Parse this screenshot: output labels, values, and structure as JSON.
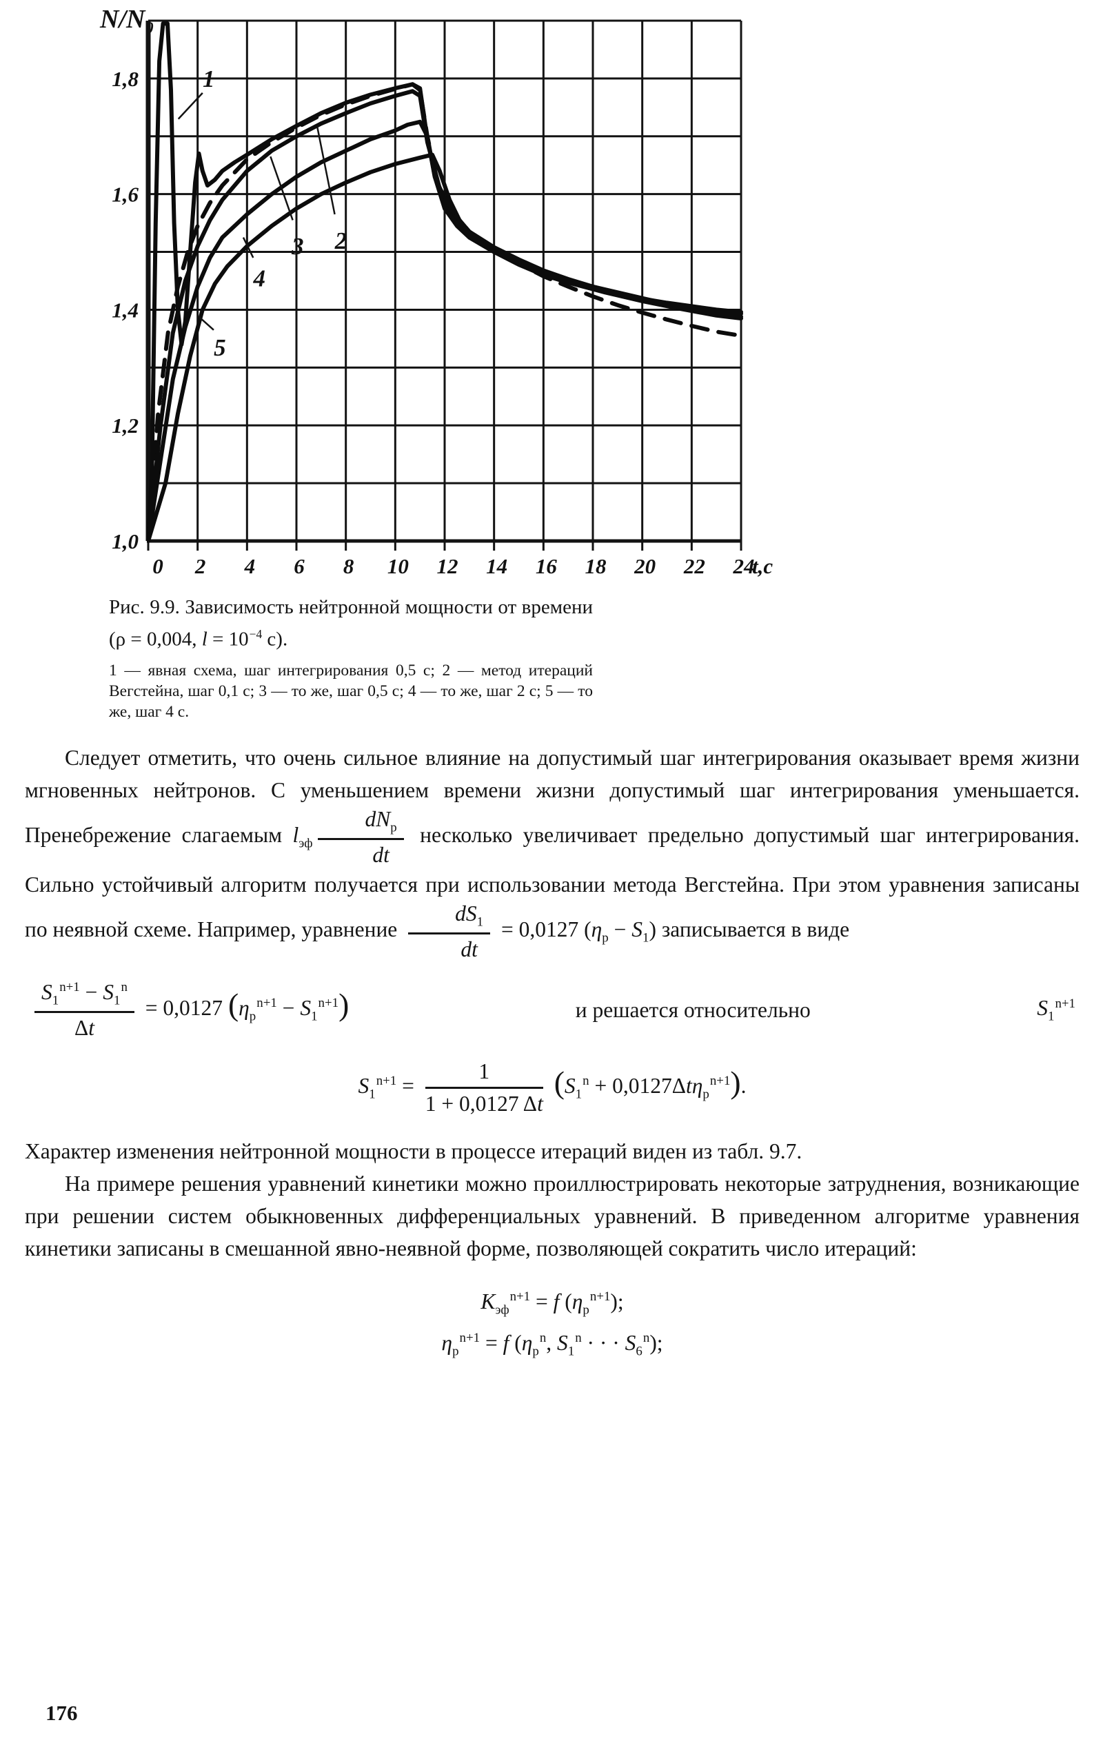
{
  "page_number": "176",
  "colors": {
    "ink": "#151515",
    "paper": "#ffffff"
  },
  "figure": {
    "caption": {
      "pre": "Рис. 9.9. Зависимость нейтронной мощности от времени (ρ = 0,004, ",
      "var": "l",
      "mid": " = 10",
      "sup": "−4",
      "post": " с)."
    },
    "legend": "1 — явная схема, шаг интегрирования 0,5 с; 2 — метод итераций Вегстейна, шаг 0,1 с; 3 — то же, шаг 0,5 с; 4 — то же, шаг 2 с; 5 — то же, шаг 4 с."
  },
  "chart_data": {
    "type": "line",
    "title": "Зависимость нейтронной мощности от времени (ρ = 0,004, l = 10⁻⁴ с)",
    "ylabel": "N/N₀",
    "xlabel": "t,c",
    "xlim": [
      0,
      24
    ],
    "ylim": [
      1.0,
      1.9
    ],
    "x_grid_step": 2,
    "y_grid_step": 0.1,
    "grid": true,
    "xticks": [
      {
        "v": 0,
        "label": "0"
      },
      {
        "v": 2,
        "label": "2"
      },
      {
        "v": 4,
        "label": "4"
      },
      {
        "v": 6,
        "label": "6"
      },
      {
        "v": 8,
        "label": "8"
      },
      {
        "v": 10,
        "label": "10"
      },
      {
        "v": 12,
        "label": "12"
      },
      {
        "v": 14,
        "label": "14"
      },
      {
        "v": 16,
        "label": "16"
      },
      {
        "v": 18,
        "label": "18"
      },
      {
        "v": 20,
        "label": "20"
      },
      {
        "v": 22,
        "label": "22"
      },
      {
        "v": 24,
        "label": "24"
      }
    ],
    "yticks": [
      {
        "v": 1.0,
        "label": "1,0"
      },
      {
        "v": 1.2,
        "label": "1,2"
      },
      {
        "v": 1.4,
        "label": "1,4"
      },
      {
        "v": 1.6,
        "label": "1,6"
      },
      {
        "v": 1.8,
        "label": "1,8"
      }
    ],
    "series": [
      {
        "id": "1",
        "name": "1 — явная схема, шаг интегрирования 0,5 с",
        "dashed": false,
        "points": [
          [
            0,
            1.0
          ],
          [
            0.15,
            1.12
          ],
          [
            0.3,
            1.55
          ],
          [
            0.45,
            1.83
          ],
          [
            0.6,
            1.895
          ],
          [
            0.78,
            1.895
          ],
          [
            0.92,
            1.78
          ],
          [
            1.05,
            1.55
          ],
          [
            1.2,
            1.4
          ],
          [
            1.35,
            1.34
          ],
          [
            1.5,
            1.38
          ],
          [
            1.7,
            1.5
          ],
          [
            1.9,
            1.62
          ],
          [
            2.05,
            1.67
          ],
          [
            2.2,
            1.64
          ],
          [
            2.4,
            1.615
          ],
          [
            2.7,
            1.625
          ],
          [
            3,
            1.64
          ],
          [
            3.5,
            1.655
          ],
          [
            4,
            1.668
          ],
          [
            5,
            1.695
          ],
          [
            6,
            1.718
          ],
          [
            7,
            1.74
          ],
          [
            8,
            1.758
          ],
          [
            9,
            1.772
          ],
          [
            10,
            1.783
          ],
          [
            10.7,
            1.79
          ],
          [
            11,
            1.783
          ],
          [
            11.25,
            1.71
          ],
          [
            11.6,
            1.63
          ],
          [
            12,
            1.585
          ],
          [
            12.7,
            1.545
          ],
          [
            13.5,
            1.515
          ],
          [
            14.5,
            1.49
          ],
          [
            15.5,
            1.47
          ],
          [
            17,
            1.447
          ],
          [
            18.5,
            1.43
          ],
          [
            20,
            1.415
          ],
          [
            21.5,
            1.402
          ],
          [
            23,
            1.39
          ],
          [
            24,
            1.385
          ]
        ]
      },
      {
        "id": "2",
        "name": "2 — метод итераций Вегстейна, шаг 0,1 с",
        "dashed": true,
        "points": [
          [
            0,
            1.0
          ],
          [
            0.4,
            1.22
          ],
          [
            0.8,
            1.36
          ],
          [
            1.2,
            1.44
          ],
          [
            1.6,
            1.5
          ],
          [
            2,
            1.545
          ],
          [
            2.5,
            1.585
          ],
          [
            3,
            1.615
          ],
          [
            4,
            1.66
          ],
          [
            5,
            1.69
          ],
          [
            6,
            1.715
          ],
          [
            7,
            1.737
          ],
          [
            8,
            1.755
          ],
          [
            9,
            1.77
          ],
          [
            10,
            1.782
          ],
          [
            10.7,
            1.79
          ],
          [
            11,
            1.78
          ],
          [
            11.3,
            1.7
          ],
          [
            11.7,
            1.62
          ],
          [
            12.2,
            1.575
          ],
          [
            13,
            1.535
          ],
          [
            14,
            1.505
          ],
          [
            15,
            1.48
          ],
          [
            16,
            1.458
          ],
          [
            17,
            1.44
          ],
          [
            18,
            1.423
          ],
          [
            19,
            1.408
          ],
          [
            20,
            1.395
          ],
          [
            21,
            1.383
          ],
          [
            22,
            1.372
          ],
          [
            23,
            1.362
          ],
          [
            24,
            1.355
          ]
        ]
      },
      {
        "id": "3",
        "name": "3 — то же, шаг 0,5 с",
        "dashed": false,
        "points": [
          [
            0,
            1.0
          ],
          [
            0.5,
            1.2
          ],
          [
            1,
            1.36
          ],
          [
            1.5,
            1.45
          ],
          [
            2,
            1.51
          ],
          [
            2.5,
            1.555
          ],
          [
            3,
            1.59
          ],
          [
            4,
            1.64
          ],
          [
            5,
            1.675
          ],
          [
            6,
            1.7
          ],
          [
            7,
            1.722
          ],
          [
            8,
            1.74
          ],
          [
            9,
            1.757
          ],
          [
            10,
            1.77
          ],
          [
            10.7,
            1.778
          ],
          [
            11,
            1.77
          ],
          [
            11.3,
            1.69
          ],
          [
            11.8,
            1.61
          ],
          [
            12.4,
            1.565
          ],
          [
            13,
            1.535
          ],
          [
            14,
            1.508
          ],
          [
            15,
            1.487
          ],
          [
            16,
            1.468
          ],
          [
            17,
            1.453
          ],
          [
            18,
            1.44
          ],
          [
            19,
            1.428
          ],
          [
            20,
            1.418
          ],
          [
            21,
            1.409
          ],
          [
            22,
            1.401
          ],
          [
            23,
            1.394
          ],
          [
            24,
            1.388
          ]
        ]
      },
      {
        "id": "4",
        "name": "4 — то же, шаг 2 с",
        "dashed": false,
        "points": [
          [
            0,
            1.0
          ],
          [
            0.5,
            1.14
          ],
          [
            1,
            1.28
          ],
          [
            1.5,
            1.37
          ],
          [
            2,
            1.44
          ],
          [
            2.5,
            1.49
          ],
          [
            3,
            1.525
          ],
          [
            4,
            1.565
          ],
          [
            5,
            1.6
          ],
          [
            6,
            1.63
          ],
          [
            7,
            1.655
          ],
          [
            8,
            1.675
          ],
          [
            9,
            1.695
          ],
          [
            10,
            1.71
          ],
          [
            10.5,
            1.72
          ],
          [
            11,
            1.725
          ],
          [
            11.3,
            1.7
          ],
          [
            11.6,
            1.63
          ],
          [
            12,
            1.575
          ],
          [
            12.5,
            1.545
          ],
          [
            13,
            1.525
          ],
          [
            14,
            1.5
          ],
          [
            15,
            1.48
          ],
          [
            16,
            1.465
          ],
          [
            17,
            1.45
          ],
          [
            18,
            1.44
          ],
          [
            19,
            1.43
          ],
          [
            20,
            1.42
          ],
          [
            21,
            1.41
          ],
          [
            22,
            1.405
          ],
          [
            23,
            1.398
          ],
          [
            24,
            1.393
          ]
        ]
      },
      {
        "id": "5",
        "name": "5 — то же, шаг 4 с",
        "dashed": false,
        "points": [
          [
            0,
            1.0
          ],
          [
            0.7,
            1.1
          ],
          [
            1.2,
            1.22
          ],
          [
            1.7,
            1.32
          ],
          [
            2.2,
            1.4
          ],
          [
            2.7,
            1.445
          ],
          [
            3.2,
            1.475
          ],
          [
            4,
            1.51
          ],
          [
            5,
            1.545
          ],
          [
            6,
            1.575
          ],
          [
            7,
            1.6
          ],
          [
            8,
            1.62
          ],
          [
            9,
            1.638
          ],
          [
            10,
            1.652
          ],
          [
            11,
            1.663
          ],
          [
            11.5,
            1.668
          ],
          [
            11.8,
            1.64
          ],
          [
            12.2,
            1.59
          ],
          [
            12.6,
            1.555
          ],
          [
            13,
            1.53
          ],
          [
            14,
            1.5
          ],
          [
            15,
            1.478
          ],
          [
            16,
            1.46
          ],
          [
            17,
            1.447
          ],
          [
            18,
            1.436
          ],
          [
            19,
            1.427
          ],
          [
            20,
            1.419
          ],
          [
            21,
            1.412
          ],
          [
            22,
            1.406
          ],
          [
            23,
            1.4
          ],
          [
            24,
            1.396
          ]
        ]
      }
    ],
    "curve_labels": [
      {
        "text": "1",
        "x": 2.45,
        "y": 1.8,
        "leader": [
          2.2,
          1.775,
          1.22,
          1.73
        ]
      },
      {
        "text": "2",
        "x": 7.8,
        "y": 1.52,
        "leader": [
          7.55,
          1.565,
          6.85,
          1.715
        ]
      },
      {
        "text": "3",
        "x": 6.05,
        "y": 1.51,
        "leader": [
          5.85,
          1.555,
          4.95,
          1.665
        ]
      },
      {
        "text": "4",
        "x": 4.5,
        "y": 1.455,
        "leader": [
          4.25,
          1.49,
          3.85,
          1.525
        ]
      },
      {
        "text": "5",
        "x": 2.9,
        "y": 1.335,
        "leader": [
          2.65,
          1.365,
          2.05,
          1.388
        ]
      }
    ]
  },
  "body": {
    "p1a": "Следует отметить, что очень сильное влияние на допустимый шаг интегрирования оказывает время жизни мгновенных нейтронов. С уменьшением времени жизни допустимый шаг интегрирования уменьшается. Пренебрежение слагаемым",
    "p1_m1": [
      {
        "v": "l",
        "sub": "эф"
      },
      {
        "frac": {
          "num": [
            {
              "v": "dN",
              "sub": "p"
            }
          ],
          "den": [
            {
              "v": "dt"
            }
          ]
        }
      }
    ],
    "p1b": "несколько увеличивает предельно допустимый шаг интегрирования. Сильно устойчивый алгоритм получается при использовании метода Вегстейна. При этом уравнения записаны по неявной схеме. Например, уравнение",
    "p1_m2": [
      {
        "frac": {
          "num": [
            {
              "v": "dS",
              "sub": "1"
            }
          ],
          "den": [
            {
              "v": "dt"
            }
          ]
        }
      },
      {
        "t": " = 0,0127 ("
      },
      {
        "v": "η",
        "sub": "p"
      },
      {
        "t": " − "
      },
      {
        "v": "S",
        "sub": "1"
      },
      {
        "t": ")"
      }
    ],
    "p1c": "записывается в виде",
    "eq1_left": [
      {
        "frac": {
          "num": [
            {
              "v": "S",
              "sub": "1",
              "sup": "n+1"
            },
            {
              "t": " − "
            },
            {
              "v": "S",
              "sub": "1",
              "sup": "n"
            }
          ],
          "den": [
            {
              "t": "Δ"
            },
            {
              "v": "t"
            }
          ]
        }
      },
      {
        "t": " = 0,0127 "
      },
      {
        "t": "(",
        "big": true
      },
      {
        "v": "η",
        "sub": "p",
        "sup": "n+1"
      },
      {
        "t": " − "
      },
      {
        "v": "S",
        "sub": "1",
        "sup": "n+1"
      },
      {
        "t": ")",
        "big": true
      }
    ],
    "eq1_mid": "и решается относительно",
    "eq1_right": [
      {
        "v": "S",
        "sub": "1",
        "sup": "n+1"
      }
    ],
    "eq2": [
      {
        "v": "S",
        "sub": "1",
        "sup": "n+1"
      },
      {
        "t": " = "
      },
      {
        "frac": {
          "num": [
            {
              "t": "1"
            }
          ],
          "den": [
            {
              "t": "1 + 0,0127 Δ"
            },
            {
              "v": "t"
            }
          ]
        }
      },
      {
        "t": " "
      },
      {
        "t": "(",
        "big": true
      },
      {
        "v": "S",
        "sub": "1",
        "sup": "n"
      },
      {
        "t": " + 0,0127Δ"
      },
      {
        "v": "t"
      },
      {
        "v": "η",
        "sub": "p",
        "sup": "n+1"
      },
      {
        "t": ")",
        "big": true
      },
      {
        "t": "."
      }
    ],
    "p2": "Характер изменения нейтронной мощности в процессе итераций виден из табл. 9.7.",
    "p3": "На примере решения уравнений кинетики можно проиллюстрировать некоторые затруднения, возникающие при решении систем обыкновенных дифференциальных уравнений. В приведенном алгоритме уравнения кинетики записаны в смешанной явно-неявной форме, позволяющей сократить число итераций:",
    "eq3": [
      {
        "v": "K",
        "sub": "эф",
        "sup": "n+1"
      },
      {
        "t": " = "
      },
      {
        "v": "f"
      },
      {
        "t": " ("
      },
      {
        "v": "η",
        "sub": "p",
        "sup": "n+1"
      },
      {
        "t": ");"
      }
    ],
    "eq4": [
      {
        "v": "η",
        "sub": "p",
        "sup": "n+1"
      },
      {
        "t": " = "
      },
      {
        "v": "f"
      },
      {
        "t": " ("
      },
      {
        "v": "η",
        "sub": "p",
        "sup": "n"
      },
      {
        "t": ",  "
      },
      {
        "v": "S",
        "sub": "1",
        "sup": "n"
      },
      {
        "t": " · · · "
      },
      {
        "v": "S",
        "sub": "6",
        "sup": "n"
      },
      {
        "t": ");"
      }
    ]
  }
}
